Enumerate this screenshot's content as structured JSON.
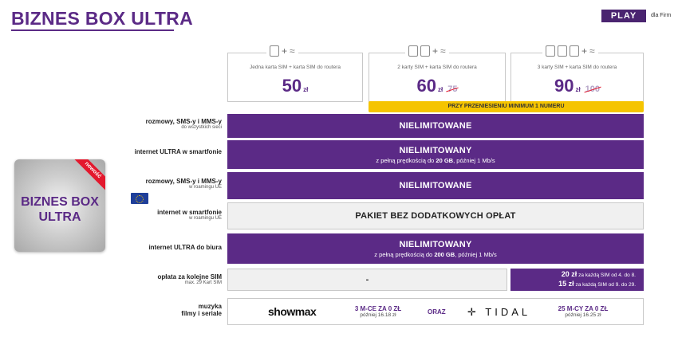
{
  "header": {
    "title": "BIZNES BOX ULTRA",
    "logo": "PLAY",
    "logo_sub": "dla Firm"
  },
  "product_box": {
    "line1": "BIZNES BOX",
    "line2": "ULTRA",
    "badge": "nowość"
  },
  "plans": [
    {
      "desc": "Jedna karta SIM + karta SIM do routera",
      "price": "50",
      "currency": "zł",
      "old_price": ""
    },
    {
      "desc": "2 karty SIM + karta SIM do routera",
      "price": "60",
      "currency": "zł",
      "old_price": "75"
    },
    {
      "desc": "3 karty SIM + karta SIM do routera",
      "price": "90",
      "currency": "zł",
      "old_price": "100"
    }
  ],
  "promo": "PRZY PRZENIESIENIU MINIMUM 1 NUMERU",
  "rows": [
    {
      "label": "rozmowy, SMS-y i MMS-y",
      "sub": "do wszystkich sieci",
      "value": "NIELIMITOWANE",
      "note_pre": "",
      "note_bold": "",
      "note_post": ""
    },
    {
      "label": "internet ULTRA w smartfonie",
      "sub": "",
      "value": "NIELIMITOWANY",
      "note_pre": "z pełną prędkością do ",
      "note_bold": "20 GB",
      "note_post": ", później 1 Mb/s"
    },
    {
      "label": "rozmowy, SMS-y i MMS-y",
      "sub": "w roamingu UE",
      "value": "NIELIMITOWANE",
      "note_pre": "",
      "note_bold": "",
      "note_post": ""
    },
    {
      "label": "internet w smartfonie",
      "sub": "w roamingu UE",
      "value": "PAKIET BEZ DODATKOWYCH OPŁAT",
      "note_pre": "",
      "note_bold": "",
      "note_post": ""
    },
    {
      "label": "internet ULTRA do biura",
      "sub": "",
      "value": "NIELIMITOWANY",
      "note_pre": "z pełną prędkością do ",
      "note_bold": "200 GB",
      "note_post": ", później 1 Mb/s"
    }
  ],
  "fee": {
    "label": "opłata za kolejne SIM",
    "sub": "max. 29 Kart SIM",
    "value": "-",
    "tier1_price": "20 zł",
    "tier1_text": " za każdą SIM od 4. do 8.",
    "tier2_price": "15 zł",
    "tier2_text": " za każdą SIM od 9. do 29."
  },
  "music": {
    "label1": "muzyka",
    "label2": "filmy i seriale",
    "showmax": "showmax",
    "showmax_offer": "3 M-CE ZA 0 ZŁ",
    "showmax_after": "później 16.18 zł",
    "oraz": "ORAZ",
    "tidal": "TIDAL",
    "tidal_offer": "25 M-CY ZA 0 ZŁ",
    "tidal_after": "później 16.25 zł"
  }
}
